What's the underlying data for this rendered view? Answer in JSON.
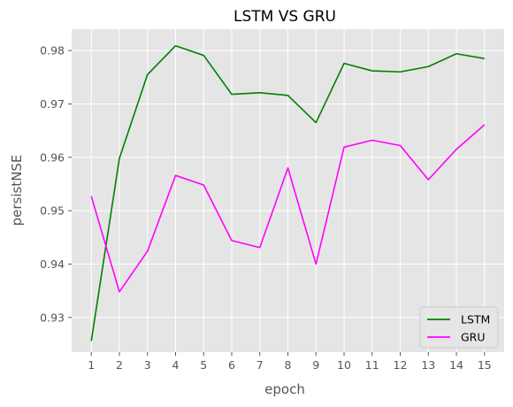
{
  "chart_data": {
    "type": "line",
    "title": "LSTM VS GRU",
    "xlabel": "epoch",
    "ylabel": "persistNSE",
    "x": [
      1,
      2,
      3,
      4,
      5,
      6,
      7,
      8,
      9,
      10,
      11,
      12,
      13,
      14,
      15
    ],
    "ylim": [
      0.9235,
      0.984
    ],
    "yticks": [
      0.93,
      0.94,
      0.95,
      0.96,
      0.97,
      0.98
    ],
    "ytick_labels": [
      "0.93",
      "0.94",
      "0.95",
      "0.96",
      "0.97",
      "0.98"
    ],
    "grid": true,
    "legend_position": "lower-right",
    "series": [
      {
        "name": "LSTM",
        "color": "#008000",
        "values": [
          0.9256,
          0.9598,
          0.9755,
          0.9809,
          0.9791,
          0.9718,
          0.9721,
          0.9716,
          0.9665,
          0.9776,
          0.9762,
          0.976,
          0.977,
          0.9794,
          0.9785
        ]
      },
      {
        "name": "GRU",
        "color": "#ff00ff",
        "values": [
          0.9527,
          0.9348,
          0.9424,
          0.9566,
          0.9548,
          0.9444,
          0.9431,
          0.958,
          0.94,
          0.9619,
          0.9632,
          0.9622,
          0.9558,
          0.9615,
          0.9661
        ]
      }
    ]
  }
}
